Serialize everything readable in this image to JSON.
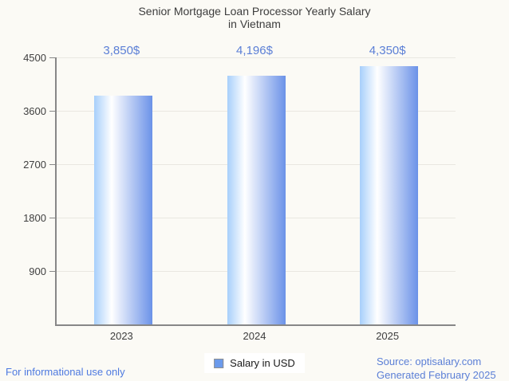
{
  "title": {
    "line1": "Senior Mortgage Loan Processor Yearly Salary",
    "line2": "in Vietnam"
  },
  "chart_data": {
    "type": "bar",
    "categories": [
      "2023",
      "2024",
      "2025"
    ],
    "series": [
      {
        "name": "Salary in USD",
        "values": [
          3850,
          4196,
          4350
        ]
      }
    ],
    "value_labels": [
      "3,850$",
      "4,196$",
      "4,350$"
    ],
    "ylim": [
      0,
      4500
    ],
    "yticks": [
      900,
      1800,
      2700,
      3600,
      4500
    ],
    "grid": true,
    "legend_position": "bottom"
  },
  "legend": {
    "label": "Salary in USD"
  },
  "footer": {
    "left": "For informational use only",
    "source_line1": "Source: optisalary.com",
    "source_line2": "Generated February 2025"
  },
  "colors": {
    "background": "#fbfaf5",
    "bar_gradient_start": "#a7cffb",
    "bar_gradient_mid": "#ffffff",
    "bar_gradient_end": "#6b92e8",
    "bar_gradient_mid_stop": "30%",
    "data_label": "#5b7fd6",
    "footer_text": "#4e7ae0",
    "legend_swatch": "#6b9aec",
    "axis": "#878787",
    "gridline": "#e9e7e1",
    "title_text": "#3d3d3d"
  }
}
